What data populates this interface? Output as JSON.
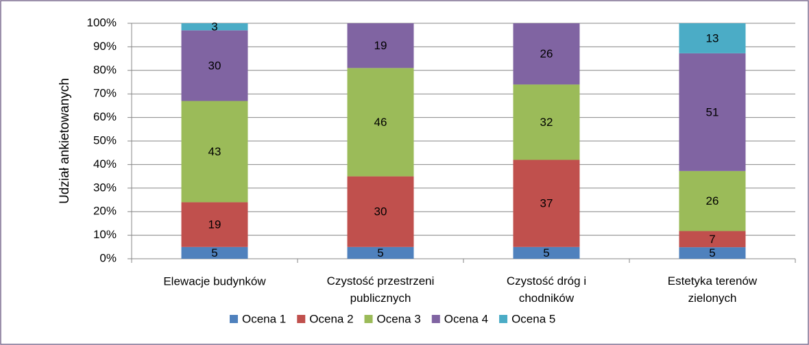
{
  "chart_data": {
    "type": "bar",
    "stacked": "percent",
    "y_label": "Udział ankietowanych",
    "categories": [
      "Elewacje budynków",
      "Czystość przestrzeni publicznych",
      "Czystość dróg i chodników",
      "Estetyka terenów zielonych"
    ],
    "series": [
      {
        "name": "Ocena 1",
        "color": "#4f81bd",
        "values": [
          5,
          5,
          5,
          5
        ]
      },
      {
        "name": "Ocena 2",
        "color": "#c0504d",
        "values": [
          19,
          30,
          37,
          7
        ]
      },
      {
        "name": "Ocena 3",
        "color": "#9bbb59",
        "values": [
          43,
          46,
          32,
          26
        ]
      },
      {
        "name": "Ocena 4",
        "color": "#8064a2",
        "values": [
          30,
          19,
          26,
          51
        ]
      },
      {
        "name": "Ocena 5",
        "color": "#4bacc6",
        "values": [
          3,
          null,
          null,
          13
        ]
      }
    ],
    "ylim": [
      0,
      100
    ],
    "yticks": [
      {
        "value": 0,
        "label": "0%"
      },
      {
        "value": 10,
        "label": "10%"
      },
      {
        "value": 20,
        "label": "20%"
      },
      {
        "value": 30,
        "label": "30%"
      },
      {
        "value": 40,
        "label": "40%"
      },
      {
        "value": 50,
        "label": "50%"
      },
      {
        "value": 60,
        "label": "60%"
      },
      {
        "value": 70,
        "label": "70%"
      },
      {
        "value": 80,
        "label": "80%"
      },
      {
        "value": 90,
        "label": "90%"
      },
      {
        "value": 100,
        "label": "100%"
      }
    ],
    "grid": true,
    "legend": "bottom"
  }
}
